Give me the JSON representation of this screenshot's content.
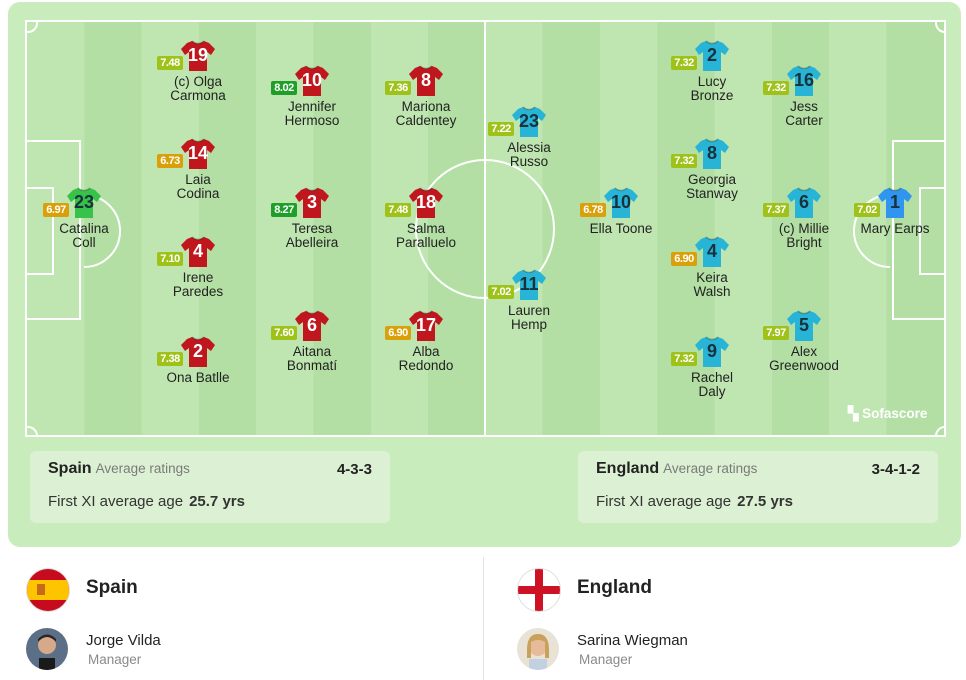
{
  "colors": {
    "spain_shirt": "#c0161e",
    "spain_keeper_shirt": "#37c34a",
    "england_shirt": "#28b4d6",
    "england_keeper_shirt": "#2f95ee",
    "rating_green": "#1f9f2a",
    "rating_lime": "#9ec21a",
    "rating_yellow": "#d9a00a"
  },
  "brand": "Sofascore",
  "players": [
    {
      "id": "s23",
      "team": "spain",
      "keeper": true,
      "number": "23",
      "name": "Catalina\nColl",
      "rating": "6.97",
      "rating_color": "yellow"
    },
    {
      "id": "s19",
      "team": "spain",
      "number": "19",
      "name": "(c) Olga\nCarmona",
      "rating": "7.48",
      "rating_color": "lime"
    },
    {
      "id": "s14",
      "team": "spain",
      "number": "14",
      "name": "Laia\nCodina",
      "rating": "6.73",
      "rating_color": "yellow"
    },
    {
      "id": "s4",
      "team": "spain",
      "number": "4",
      "name": "Irene\nParedes",
      "rating": "7.10",
      "rating_color": "lime"
    },
    {
      "id": "s2",
      "team": "spain",
      "number": "2",
      "name": "Ona Batlle",
      "rating": "7.38",
      "rating_color": "lime"
    },
    {
      "id": "s10",
      "team": "spain",
      "number": "10",
      "name": "Jennifer\nHermoso",
      "rating": "8.02",
      "rating_color": "green"
    },
    {
      "id": "s3",
      "team": "spain",
      "number": "3",
      "name": "Teresa\nAbelleira",
      "rating": "8.27",
      "rating_color": "green"
    },
    {
      "id": "s6",
      "team": "spain",
      "number": "6",
      "name": "Aitana\nBonmatí",
      "rating": "7.60",
      "rating_color": "lime"
    },
    {
      "id": "s8",
      "team": "spain",
      "number": "8",
      "name": "Mariona\nCaldentey",
      "rating": "7.36",
      "rating_color": "lime"
    },
    {
      "id": "s18",
      "team": "spain",
      "number": "18",
      "name": "Salma\nParalluelo",
      "rating": "7.48",
      "rating_color": "lime"
    },
    {
      "id": "s17",
      "team": "spain",
      "number": "17",
      "name": "Alba\nRedondo",
      "rating": "6.90",
      "rating_color": "yellow"
    },
    {
      "id": "e23",
      "team": "england",
      "number": "23",
      "name": "Alessia\nRusso",
      "rating": "7.22",
      "rating_color": "lime"
    },
    {
      "id": "e11",
      "team": "england",
      "number": "11",
      "name": "Lauren\nHemp",
      "rating": "7.02",
      "rating_color": "lime"
    },
    {
      "id": "e10",
      "team": "england",
      "number": "10",
      "name": "Ella Toone",
      "rating": "6.78",
      "rating_color": "yellow"
    },
    {
      "id": "e2",
      "team": "england",
      "number": "2",
      "name": "Lucy\nBronze",
      "rating": "7.32",
      "rating_color": "lime"
    },
    {
      "id": "e8",
      "team": "england",
      "number": "8",
      "name": "Georgia\nStanway",
      "rating": "7.32",
      "rating_color": "lime"
    },
    {
      "id": "e4",
      "team": "england",
      "number": "4",
      "name": "Keira\nWalsh",
      "rating": "6.90",
      "rating_color": "yellow"
    },
    {
      "id": "e9",
      "team": "england",
      "number": "9",
      "name": "Rachel\nDaly",
      "rating": "7.32",
      "rating_color": "lime"
    },
    {
      "id": "e16",
      "team": "england",
      "number": "16",
      "name": "Jess\nCarter",
      "rating": "7.32",
      "rating_color": "lime"
    },
    {
      "id": "e6",
      "team": "england",
      "number": "6",
      "name": "(c) Millie\nBright",
      "rating": "7.37",
      "rating_color": "lime"
    },
    {
      "id": "e5",
      "team": "england",
      "number": "5",
      "name": "Alex\nGreenwood",
      "rating": "7.97",
      "rating_color": "lime"
    },
    {
      "id": "e1",
      "team": "england",
      "keeper": true,
      "number": "1",
      "name": "Mary Earps",
      "rating": "7.02",
      "rating_color": "lime"
    }
  ],
  "spain_summary": {
    "team": "Spain",
    "avg_label": "Average ratings",
    "formation": "4-3-3",
    "age_label": "First XI average age",
    "age_value": "25.7 yrs"
  },
  "england_summary": {
    "team": "England",
    "avg_label": "Average ratings",
    "formation": "3-4-1-2",
    "age_label": "First XI average age",
    "age_value": "27.5 yrs"
  },
  "spain_info": {
    "name": "Spain",
    "manager": "Jorge Vilda",
    "manager_role": "Manager",
    "flag_icon": "spain-flag-icon"
  },
  "england_info": {
    "name": "England",
    "manager": "Sarina Wiegman",
    "manager_role": "Manager",
    "flag_icon": "england-flag-icon"
  }
}
